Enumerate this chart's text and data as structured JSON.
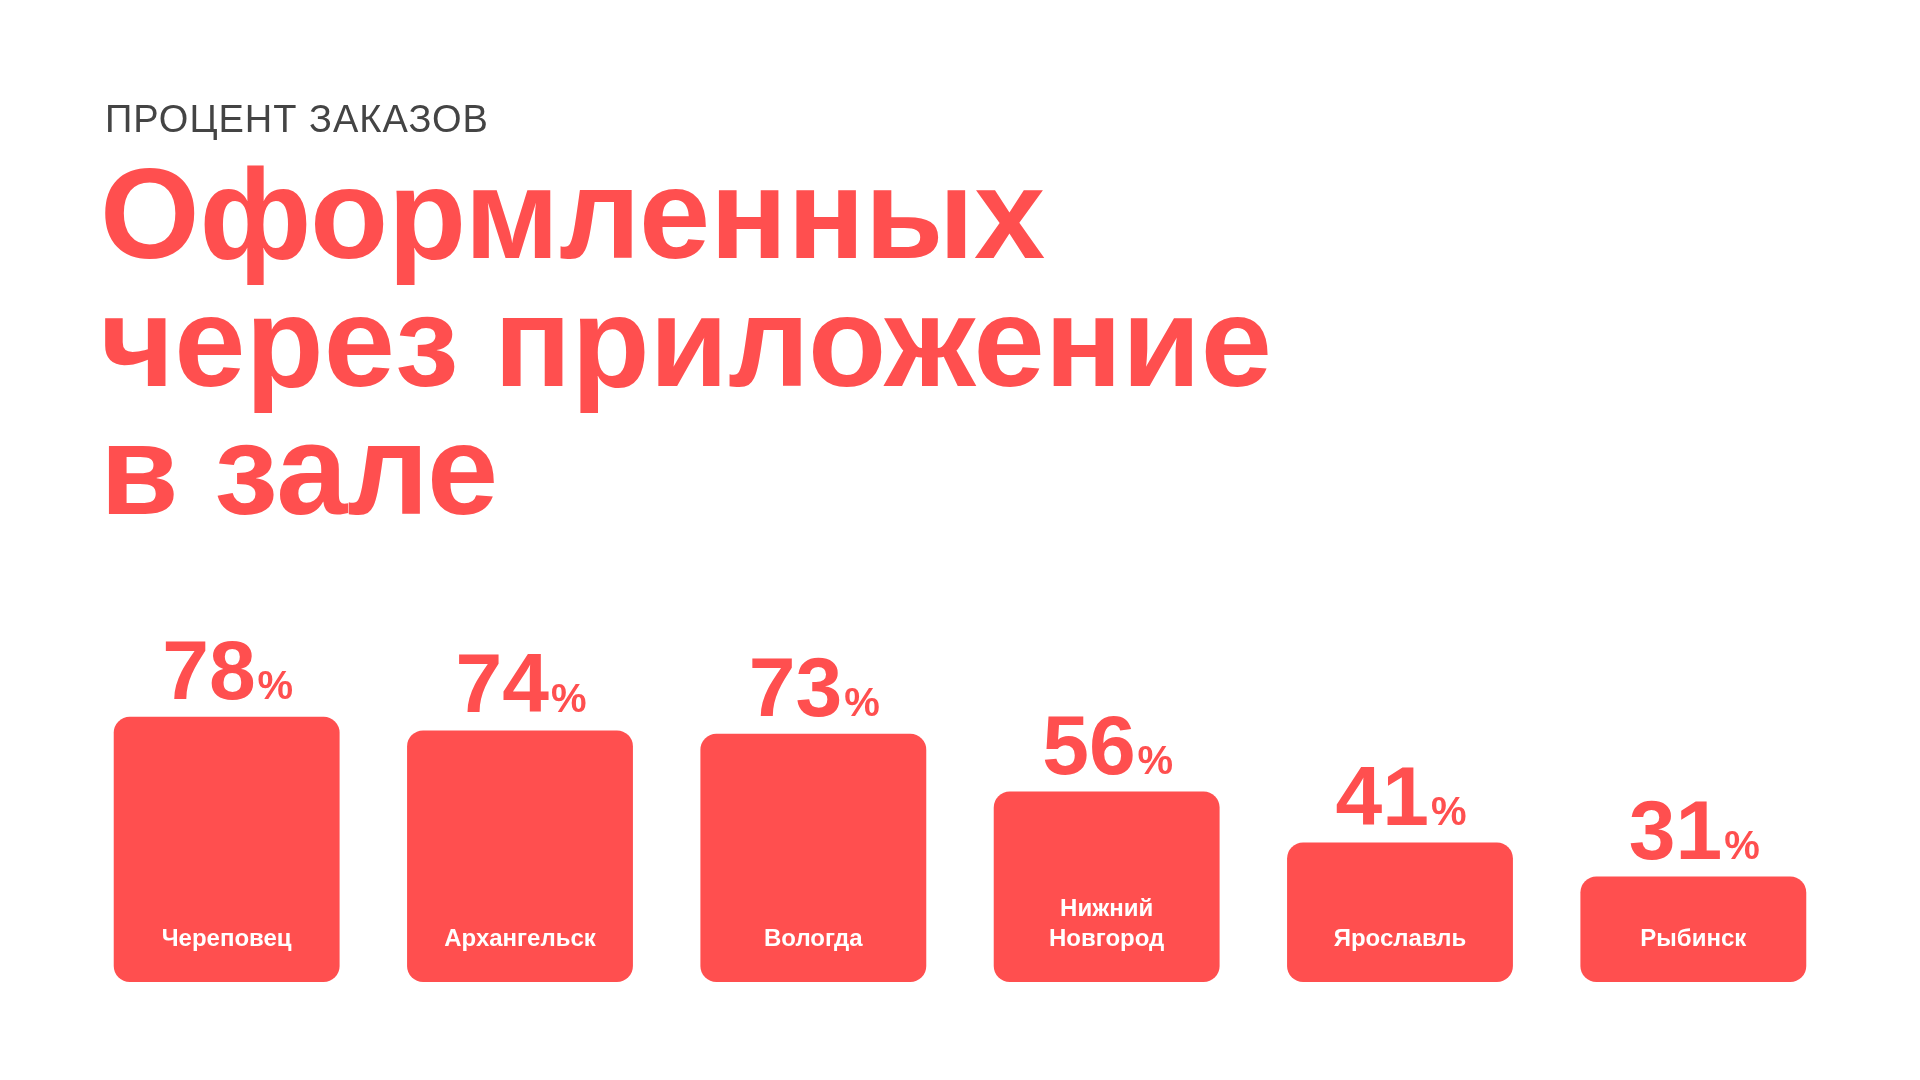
{
  "chart_data": {
    "type": "bar",
    "subtitle": "ПРОЦЕНТ ЗАКАЗОВ",
    "title": "Оформленных через приложение в зале",
    "categories": [
      "Череповец",
      "Архангельск",
      "Вологда",
      "Нижний Новгород",
      "Ярославль",
      "Рыбинск"
    ],
    "values": [
      78,
      74,
      73,
      56,
      41,
      31
    ],
    "value_labels": [
      "78%",
      "74%",
      "73%",
      "56%",
      "41%",
      "31%"
    ],
    "color": "#ff4f4f",
    "legend": false,
    "tick_labels": false
  }
}
